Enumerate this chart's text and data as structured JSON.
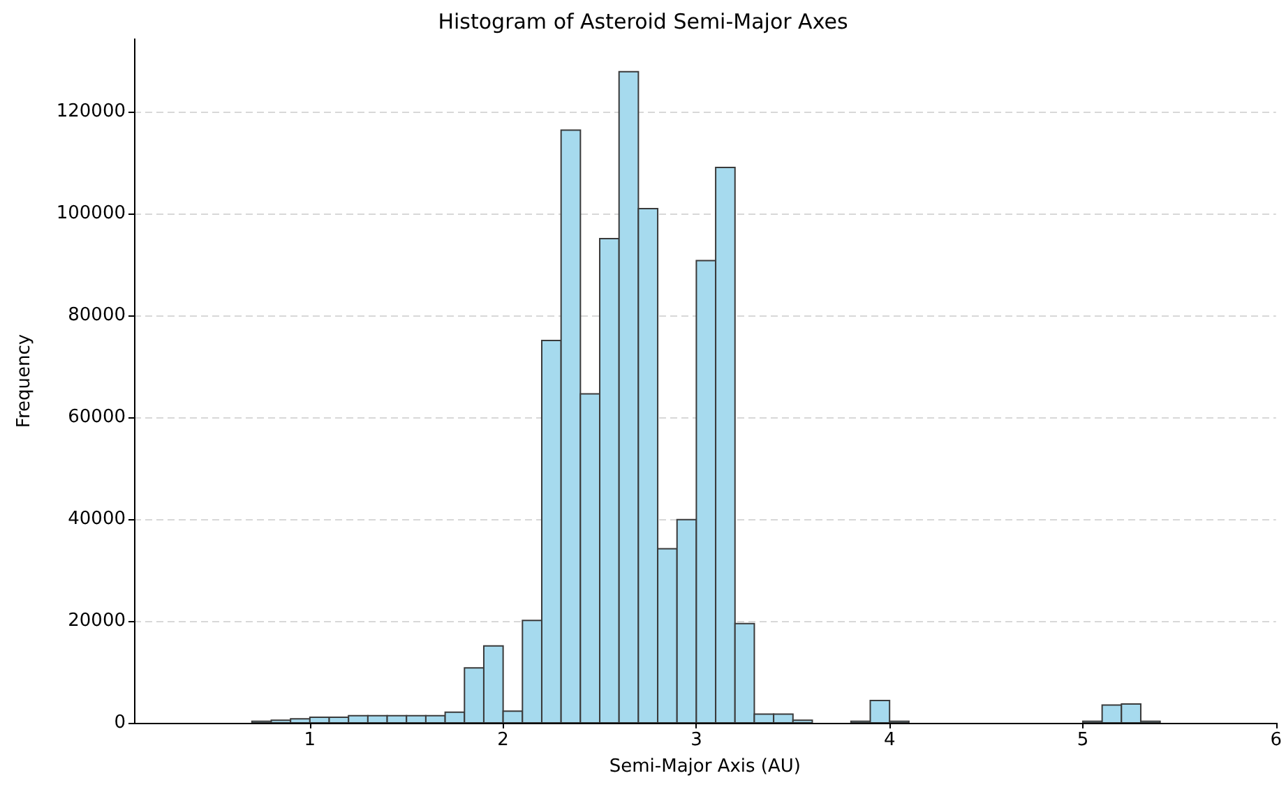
{
  "chart_data": {
    "type": "histogram",
    "title": "Histogram of Asteroid Semi-Major Axes",
    "xlabel": "Semi-Major Axis (AU)",
    "ylabel": "Frequency",
    "bins": [
      0.7,
      0.8,
      0.9,
      1.0,
      1.1,
      1.2,
      1.3,
      1.4,
      1.5,
      1.6,
      1.7,
      1.8,
      1.9,
      2.0,
      2.1,
      2.2,
      2.3,
      2.4,
      2.5,
      2.6,
      2.7,
      2.8,
      2.9,
      3.0,
      3.1,
      3.2,
      3.3,
      3.4,
      3.5,
      3.6,
      3.7,
      3.8,
      3.9,
      4.0,
      4.1,
      4.2,
      4.3,
      4.4,
      4.5,
      4.6,
      4.7,
      4.8,
      4.9,
      5.0,
      5.1,
      5.2,
      5.3,
      5.4
    ],
    "values": [
      300,
      500,
      800,
      1100,
      1100,
      1400,
      1400,
      1400,
      1400,
      1400,
      2100,
      10800,
      15100,
      2300,
      20100,
      75100,
      116400,
      64600,
      95100,
      127900,
      101000,
      34200,
      39900,
      90800,
      109100,
      19500,
      1700,
      1700,
      500,
      0,
      0,
      300,
      4400,
      300,
      0,
      0,
      0,
      0,
      0,
      0,
      0,
      0,
      0,
      300,
      3500,
      3700,
      300
    ],
    "color": "#a6daee",
    "xlim": [
      0.09,
      6
    ],
    "xticks": [
      1,
      2,
      3,
      4,
      5,
      6
    ],
    "ylim": [
      0,
      134300
    ],
    "yticks": [
      0,
      20000,
      40000,
      60000,
      80000,
      100000,
      120000
    ],
    "grid": "y"
  }
}
